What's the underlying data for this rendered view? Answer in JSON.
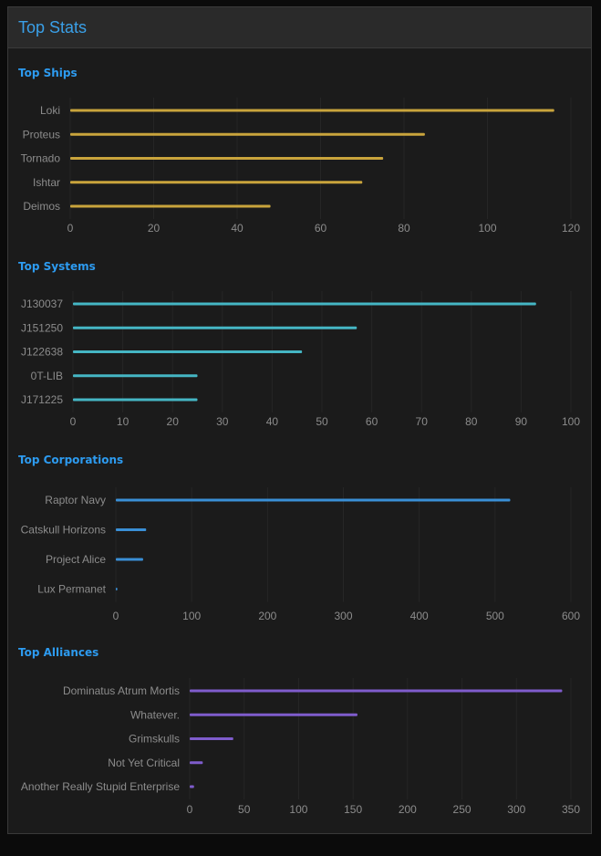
{
  "panel": {
    "title": "Top Stats"
  },
  "colors": {
    "ships": "#c9a43c",
    "systems": "#45b6c4",
    "corporations": "#3a8fd6",
    "alliances": "#7f5ccc",
    "grid": "#262626",
    "label": "#8c8c8c",
    "title": "#2d9bf0"
  },
  "chart_data": [
    {
      "type": "bar",
      "orientation": "horizontal",
      "title": "Top Ships",
      "categories": [
        "Loki",
        "Proteus",
        "Tornado",
        "Ishtar",
        "Deimos"
      ],
      "values": [
        116,
        85,
        75,
        70,
        48
      ],
      "xlim": [
        0,
        120
      ],
      "ticks": [
        0,
        20,
        40,
        60,
        80,
        100,
        120
      ],
      "grid": true
    },
    {
      "type": "bar",
      "orientation": "horizontal",
      "title": "Top Systems",
      "categories": [
        "J130037",
        "J151250",
        "J122638",
        "0T-LIB",
        "J171225"
      ],
      "values": [
        93,
        57,
        46,
        25,
        25
      ],
      "xlim": [
        0,
        100
      ],
      "ticks": [
        0,
        10,
        20,
        30,
        40,
        50,
        60,
        70,
        80,
        90,
        100
      ],
      "grid": true
    },
    {
      "type": "bar",
      "orientation": "horizontal",
      "title": "Top Corporations",
      "categories": [
        "Raptor Navy",
        "Catskull Horizons",
        "Project Alice",
        "Lux Permanet"
      ],
      "values": [
        520,
        40,
        36,
        2
      ],
      "xlim": [
        0,
        600
      ],
      "ticks": [
        0,
        100,
        200,
        300,
        400,
        500,
        600
      ],
      "grid": true
    },
    {
      "type": "bar",
      "orientation": "horizontal",
      "title": "Top Alliances",
      "categories": [
        "Dominatus Atrum Mortis",
        "Whatever.",
        "Grimskulls",
        "Not Yet Critical",
        "Another Really Stupid Enterprise"
      ],
      "values": [
        342,
        154,
        40,
        12,
        4
      ],
      "xlim": [
        0,
        350
      ],
      "ticks": [
        0,
        50,
        100,
        150,
        200,
        250,
        300,
        350
      ],
      "grid": true
    }
  ]
}
